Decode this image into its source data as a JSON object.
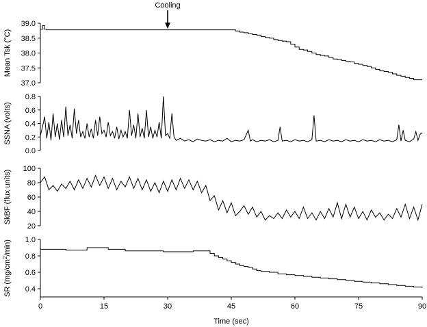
{
  "chart_data": {
    "type": "line",
    "annotation": "Cooling",
    "annotation_x": 30,
    "xlabel": "Time (sec)",
    "xlim": [
      0,
      90
    ],
    "xticks": [
      0,
      15,
      30,
      45,
      60,
      75,
      90
    ],
    "xtick_labels": [
      "0",
      "15",
      "30",
      "45",
      "60",
      "75",
      "90"
    ],
    "panels": [
      {
        "id": "tsk",
        "ylabel_main": "Mean Tsk (",
        "ylabel_unit": "°C",
        "ylabel_close": ")",
        "ylim": [
          37.0,
          39.0
        ],
        "yticks": [
          37.0,
          37.5,
          38.0,
          38.5,
          39.0
        ],
        "ytick_labels": [
          "37.0",
          "37.5",
          "38.0",
          "38.5",
          "39.0"
        ],
        "series": [
          {
            "x": [
              0,
              0.4,
              0.5,
              0.9,
              1.0,
              1.4,
              1.5,
              40,
              45,
              46,
              47,
              48,
              49,
              50,
              51,
              52,
              53,
              54,
              55,
              56,
              57,
              58,
              59,
              60,
              61,
              62,
              63,
              64,
              65,
              66,
              67,
              68,
              69,
              70,
              71,
              72,
              73,
              74,
              75,
              76,
              77,
              78,
              79,
              80,
              81,
              82,
              83,
              84,
              85,
              86,
              87,
              88,
              89,
              90
            ],
            "y": [
              38.8,
              38.8,
              38.92,
              38.92,
              38.8,
              38.8,
              38.78,
              38.78,
              38.78,
              38.74,
              38.7,
              38.68,
              38.65,
              38.62,
              38.6,
              38.55,
              38.52,
              38.5,
              38.45,
              38.42,
              38.4,
              38.38,
              38.3,
              38.2,
              38.12,
              38.1,
              38.05,
              38.0,
              37.95,
              37.92,
              37.9,
              37.85,
              37.8,
              37.78,
              37.75,
              37.72,
              37.7,
              37.65,
              37.62,
              37.58,
              37.55,
              37.5,
              37.45,
              37.4,
              37.38,
              37.35,
              37.3,
              37.25,
              37.22,
              37.18,
              37.15,
              37.1,
              37.1,
              37.1
            ]
          }
        ]
      },
      {
        "id": "ssna",
        "ylabel_main": "SSNA (volts)",
        "ylim": [
          0.0,
          0.8
        ],
        "yticks": [
          0.0,
          0.2,
          0.4,
          0.6,
          0.8
        ],
        "ytick_labels": [
          "0.0",
          "0.2",
          "0.4",
          "0.6",
          "0.8"
        ],
        "series": [
          {
            "x": [
              0,
              0.5,
              1.0,
              1.5,
              2.0,
              2.5,
              3.0,
              3.5,
              4.0,
              4.5,
              5.0,
              5.5,
              6.0,
              6.5,
              7.0,
              7.5,
              8.0,
              8.5,
              9.0,
              9.5,
              10.0,
              10.5,
              11.0,
              11.5,
              12.0,
              12.5,
              13.0,
              13.5,
              14.0,
              14.5,
              15.0,
              15.5,
              16.0,
              16.5,
              17.0,
              17.5,
              18.0,
              18.5,
              19.0,
              19.5,
              20.0,
              20.5,
              21.0,
              21.5,
              22.0,
              22.5,
              23.0,
              23.5,
              24.0,
              24.5,
              25.0,
              25.5,
              26.0,
              26.5,
              27.0,
              27.5,
              28.0,
              28.5,
              29.0,
              29.5,
              30.0,
              30.5,
              31.0,
              31.5,
              32.0,
              33.0,
              34.0,
              35.0,
              36.0,
              37.0,
              38.0,
              39.0,
              40.0,
              41.0,
              42.0,
              43.0,
              44.0,
              45.0,
              46.0,
              47.0,
              48.0,
              49.0,
              49.5,
              50.0,
              51.0,
              52.0,
              53.0,
              54.0,
              55.0,
              56.0,
              56.5,
              57.0,
              58.0,
              59.0,
              60.0,
              61.0,
              62.0,
              63.0,
              64.0,
              64.5,
              65.0,
              66.0,
              67.0,
              68.0,
              69.0,
              70.0,
              71.0,
              72.0,
              73.0,
              74.0,
              75.0,
              76.0,
              77.0,
              78.0,
              79.0,
              80.0,
              81.0,
              82.0,
              83.0,
              84.0,
              84.5,
              85.0,
              85.5,
              86.0,
              87.0,
              88.0,
              88.5,
              89.0,
              89.5,
              90.0
            ],
            "y": [
              0.22,
              0.35,
              0.5,
              0.18,
              0.42,
              0.15,
              0.55,
              0.2,
              0.4,
              0.16,
              0.45,
              0.2,
              0.65,
              0.22,
              0.38,
              0.18,
              0.62,
              0.25,
              0.45,
              0.2,
              0.28,
              0.18,
              0.4,
              0.2,
              0.32,
              0.18,
              0.45,
              0.22,
              0.5,
              0.25,
              0.3,
              0.2,
              0.42,
              0.22,
              0.28,
              0.18,
              0.35,
              0.17,
              0.3,
              0.2,
              0.28,
              0.18,
              0.6,
              0.22,
              0.38,
              0.18,
              0.55,
              0.2,
              0.33,
              0.18,
              0.6,
              0.2,
              0.35,
              0.18,
              0.3,
              0.2,
              0.42,
              0.18,
              0.8,
              0.22,
              0.25,
              0.18,
              0.55,
              0.2,
              0.15,
              0.18,
              0.14,
              0.16,
              0.13,
              0.17,
              0.15,
              0.14,
              0.16,
              0.13,
              0.15,
              0.14,
              0.18,
              0.13,
              0.15,
              0.14,
              0.16,
              0.3,
              0.14,
              0.16,
              0.13,
              0.15,
              0.14,
              0.16,
              0.13,
              0.15,
              0.35,
              0.14,
              0.15,
              0.13,
              0.16,
              0.14,
              0.15,
              0.13,
              0.16,
              0.52,
              0.14,
              0.15,
              0.13,
              0.16,
              0.14,
              0.15,
              0.13,
              0.16,
              0.14,
              0.15,
              0.13,
              0.16,
              0.14,
              0.15,
              0.13,
              0.16,
              0.14,
              0.15,
              0.13,
              0.16,
              0.38,
              0.14,
              0.3,
              0.15,
              0.13,
              0.17,
              0.28,
              0.15,
              0.24,
              0.26
            ]
          }
        ]
      },
      {
        "id": "skbf",
        "ylabel_main": "SkBF (flux units)",
        "ylim": [
          20,
          100
        ],
        "yticks": [
          20,
          40,
          60,
          80,
          100
        ],
        "ytick_labels": [
          "20",
          "40",
          "60",
          "80",
          "100"
        ],
        "series": [
          {
            "x": [
              0,
              1,
              2,
              3,
              4,
              5,
              6,
              7,
              8,
              9,
              10,
              11,
              12,
              13,
              14,
              15,
              16,
              17,
              18,
              19,
              20,
              21,
              22,
              23,
              24,
              25,
              26,
              27,
              28,
              29,
              30,
              31,
              32,
              33,
              34,
              35,
              36,
              37,
              38,
              39,
              40,
              41,
              42,
              43,
              44,
              45,
              46,
              47,
              48,
              49,
              50,
              51,
              52,
              53,
              54,
              55,
              56,
              57,
              58,
              59,
              60,
              61,
              62,
              63,
              64,
              65,
              66,
              67,
              68,
              69,
              70,
              71,
              72,
              73,
              74,
              75,
              76,
              77,
              78,
              79,
              80,
              81,
              82,
              83,
              84,
              85,
              86,
              87,
              88,
              89,
              90
            ],
            "y": [
              80,
              88,
              70,
              76,
              68,
              78,
              72,
              82,
              70,
              84,
              72,
              86,
              74,
              90,
              76,
              88,
              72,
              86,
              70,
              82,
              74,
              88,
              72,
              86,
              70,
              84,
              68,
              80,
              66,
              82,
              68,
              84,
              70,
              86,
              72,
              84,
              70,
              82,
              66,
              76,
              55,
              62,
              42,
              55,
              38,
              52,
              34,
              40,
              48,
              36,
              46,
              32,
              40,
              28,
              34,
              30,
              38,
              30,
              42,
              32,
              40,
              30,
              46,
              30,
              38,
              28,
              40,
              30,
              44,
              32,
              52,
              30,
              50,
              32,
              46,
              30,
              40,
              28,
              42,
              32,
              38,
              28,
              36,
              30,
              44,
              32,
              50,
              30,
              46,
              28,
              50
            ]
          }
        ]
      },
      {
        "id": "sr",
        "ylabel_main": "SR (mg/cm",
        "ylabel_sup": "2",
        "ylabel_rest": "/min)",
        "ylim": [
          0.3,
          1.0
        ],
        "yticks": [
          0.4,
          0.6,
          0.8,
          1.0
        ],
        "ytick_labels": [
          "0.4",
          "0.6",
          "0.8",
          "1.0"
        ],
        "series": [
          {
            "x": [
              0,
              2,
              3,
              5,
              6,
              10,
              11,
              15,
              16,
              19,
              20,
              28,
              29,
              35,
              36,
              39,
              40,
              41,
              42,
              43,
              44,
              45,
              46,
              47,
              48,
              49,
              50,
              51,
              52,
              54,
              56,
              58,
              60,
              62,
              64,
              66,
              68,
              70,
              72,
              74,
              76,
              78,
              80,
              82,
              84,
              86,
              88,
              90
            ],
            "y": [
              0.88,
              0.88,
              0.88,
              0.88,
              0.87,
              0.87,
              0.9,
              0.9,
              0.88,
              0.88,
              0.86,
              0.86,
              0.85,
              0.85,
              0.86,
              0.86,
              0.83,
              0.8,
              0.78,
              0.76,
              0.74,
              0.72,
              0.7,
              0.68,
              0.67,
              0.66,
              0.64,
              0.62,
              0.61,
              0.6,
              0.58,
              0.57,
              0.56,
              0.55,
              0.54,
              0.53,
              0.52,
              0.51,
              0.5,
              0.49,
              0.48,
              0.47,
              0.46,
              0.45,
              0.44,
              0.43,
              0.42,
              0.41
            ]
          }
        ]
      }
    ]
  }
}
